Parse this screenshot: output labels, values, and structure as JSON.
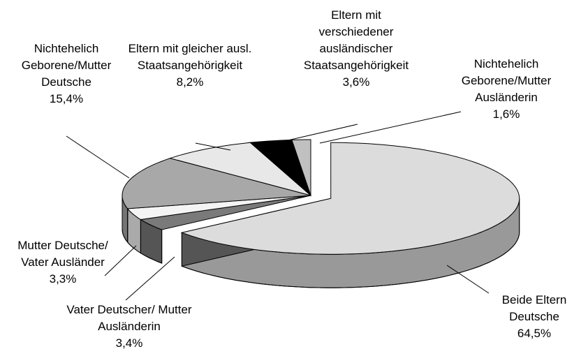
{
  "chart_data": {
    "type": "pie",
    "categories": [
      "Beide Eltern Deutsche",
      "Vater Deutscher/ Mutter Ausländerin",
      "Mutter Deutsche/ Vater Ausländer",
      "Nichtehelich Geborene/Mutter Deutsche",
      "Eltern mit gleicher ausl. Staatsangehörigkeit",
      "Eltern mit verschiedener ausländischer Staatsangehörigkeit",
      "Nichtehelich Geborene/Mutter Ausländerin"
    ],
    "values": [
      64.5,
      3.4,
      3.3,
      15.4,
      8.2,
      3.6,
      1.6
    ],
    "value_labels": [
      "64,5%",
      "3,4%",
      "3,3%",
      "15,4%",
      "8,2%",
      "3,6%",
      "1,6%"
    ],
    "colors": [
      "#dcdcdc",
      "#7a7a7a",
      "#f4f4f4",
      "#a8a8a8",
      "#e8e8e8",
      "#000000",
      "#c0c0c0"
    ]
  }
}
